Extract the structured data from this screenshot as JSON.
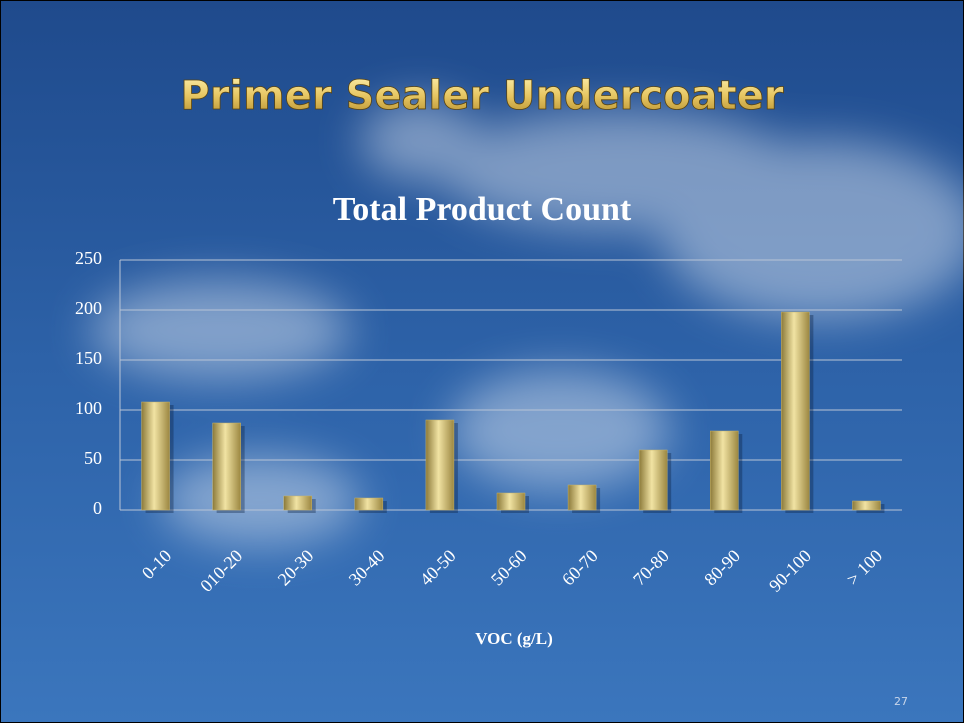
{
  "slide": {
    "title": "Primer Sealer Undercoater",
    "page_number": "27"
  },
  "chart_data": {
    "type": "bar",
    "title": "Total Product Count",
    "x_label": "VOC (g/L)",
    "categories": [
      "0-10",
      "010-20",
      "20-30",
      "30-40",
      "40-50",
      "50-60",
      "60-70",
      "70-80",
      "80-90",
      "90-100",
      "> 100"
    ],
    "values": [
      108,
      87,
      14,
      12,
      90,
      17,
      25,
      60,
      79,
      198,
      9
    ],
    "color": "#c8b46a",
    "ylim": [
      0,
      250
    ],
    "yticks": [
      0,
      50,
      100,
      150,
      200,
      250
    ],
    "grid": true
  }
}
